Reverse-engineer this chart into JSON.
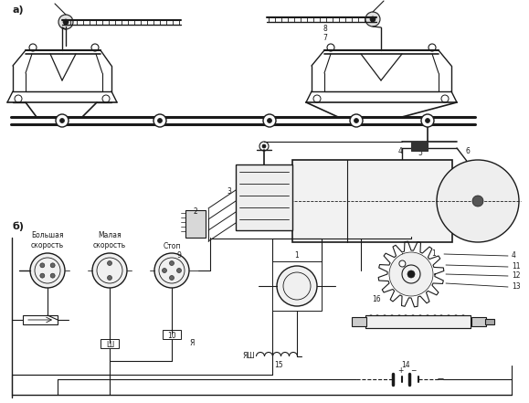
{
  "bg_color": "#ffffff",
  "line_color": "#1a1a1a",
  "label_a": "а)",
  "label_b": "б)",
  "text_bolshaya": "Большая\nскорость",
  "text_malaya": "Малая\nскорость",
  "text_stop": "Стоп",
  "text_yash": "ЯШ",
  "text_sh": "Ш",
  "text_ya": "Я"
}
